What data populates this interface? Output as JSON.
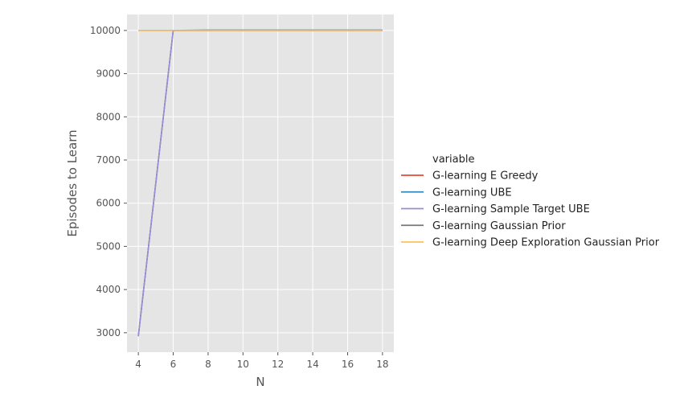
{
  "chart_data": {
    "type": "line",
    "xlabel": "N",
    "ylabel": "Episodes to Learn",
    "xlim": [
      3.35,
      18.65
    ],
    "ylim": [
      2550,
      10370
    ],
    "xticks": [
      4,
      6,
      8,
      10,
      12,
      14,
      16,
      18
    ],
    "yticks": [
      3000,
      4000,
      5000,
      6000,
      7000,
      8000,
      9000,
      10000
    ],
    "x": [
      4,
      6,
      8,
      10,
      12,
      14,
      16,
      18
    ],
    "grid": true,
    "background": "#e5e5e5",
    "legend": {
      "title": "variable",
      "placement": "right"
    },
    "series": [
      {
        "name": "G-learning E Greedy",
        "color": "#e24a33",
        "values": [
          2920,
          10000,
          10000,
          10000,
          10000,
          10000,
          10000,
          10000
        ]
      },
      {
        "name": "G-learning UBE",
        "color": "#348abd",
        "values": [
          2920,
          10000,
          10000,
          10000,
          10000,
          10000,
          10000,
          10000
        ]
      },
      {
        "name": "G-learning Sample Target UBE",
        "color": "#988ed5",
        "values": [
          2920,
          10000,
          10000,
          10000,
          10000,
          10000,
          10000,
          10000
        ]
      },
      {
        "name": "G-learning Gaussian Prior",
        "color": "#777777",
        "values": [
          10000,
          10000,
          10010,
          10010,
          10010,
          10010,
          10010,
          10010
        ]
      },
      {
        "name": "G-learning Deep Exploration Gaussian Prior",
        "color": "#fbc15e",
        "values": [
          10000,
          10000,
          10000,
          10000,
          10000,
          10000,
          10000,
          10000
        ]
      }
    ]
  }
}
